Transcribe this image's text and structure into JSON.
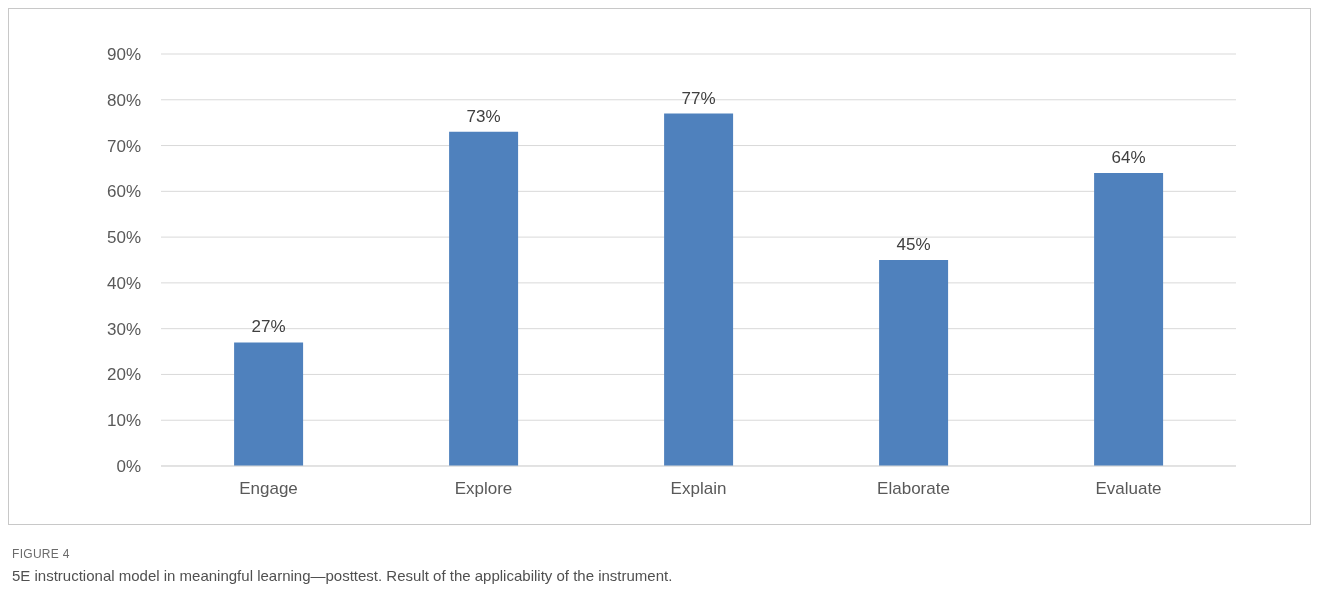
{
  "chart_data": {
    "type": "bar",
    "categories": [
      "Engage",
      "Explore",
      "Explain",
      "Elaborate",
      "Evaluate"
    ],
    "values": [
      27,
      73,
      77,
      45,
      64
    ],
    "value_labels": [
      "27%",
      "73%",
      "77%",
      "45%",
      "64%"
    ],
    "color": "#4f81bd",
    "ylim": [
      0,
      90
    ],
    "yticks": [
      {
        "value": 0,
        "label": "0%"
      },
      {
        "value": 10,
        "label": "10%"
      },
      {
        "value": 20,
        "label": "20%"
      },
      {
        "value": 30,
        "label": "30%"
      },
      {
        "value": 40,
        "label": "40%"
      },
      {
        "value": 50,
        "label": "50%"
      },
      {
        "value": 60,
        "label": "60%"
      },
      {
        "value": 70,
        "label": "70%"
      },
      {
        "value": 80,
        "label": "80%"
      },
      {
        "value": 90,
        "label": "90%"
      }
    ],
    "grid": "y",
    "legend": false,
    "annotations": [
      "FIGURE 4",
      "5E instructional model in meaningful learning—posttest. Result of the applicability of the instrument."
    ]
  }
}
